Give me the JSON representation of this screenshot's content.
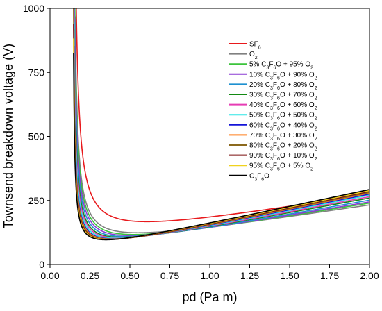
{
  "chart_data": {
    "type": "line",
    "title": "",
    "xlabel": "pd (Pa m)",
    "ylabel": "Townsend breakdown voltage (V)",
    "xlim": [
      0,
      2
    ],
    "ylim": [
      0,
      1000
    ],
    "x_ticks": [
      "0.00",
      "0.25",
      "0.50",
      "0.75",
      "1.00",
      "1.25",
      "1.50",
      "1.75",
      "2.00"
    ],
    "y_ticks": [
      "0",
      "250",
      "500",
      "750",
      "1000"
    ],
    "legend_position": "top-right",
    "grid": false,
    "series": [
      {
        "name": "SF6",
        "legend": [
          [
            "SF",
            ""
          ],
          [
            "6",
            "sub"
          ]
        ],
        "color": "#e8191c",
        "Vmin": 172,
        "pdmin": 0.78,
        "slope": 48,
        "steep": 55
      },
      {
        "name": "O2",
        "legend": [
          [
            "O",
            ""
          ],
          [
            "2",
            "sub"
          ]
        ],
        "color": "#808080",
        "Vmin": 125,
        "pdmin": 0.62,
        "slope": 26,
        "steep": 70
      },
      {
        "name": "5% C3F6O + 95% O2",
        "legend": [
          [
            "5% C",
            ""
          ],
          [
            "3",
            "sub"
          ],
          [
            "F",
            ""
          ],
          [
            "6",
            "sub"
          ],
          [
            "O + 95% O",
            ""
          ],
          [
            "2",
            "sub"
          ]
        ],
        "color": "#3cc43c",
        "Vmin": 118,
        "pdmin": 0.58,
        "slope": 26,
        "steep": 78
      },
      {
        "name": "10% C3F6O + 90% O2",
        "legend": [
          [
            "10% C",
            ""
          ],
          [
            "3",
            "sub"
          ],
          [
            "F",
            ""
          ],
          [
            "6",
            "sub"
          ],
          [
            "O + 90% O",
            ""
          ],
          [
            "2",
            "sub"
          ]
        ],
        "color": "#8c3cd4",
        "Vmin": 114,
        "pdmin": 0.55,
        "slope": 26,
        "steep": 82
      },
      {
        "name": "20% C3F6O + 80% O2",
        "legend": [
          [
            "20% C",
            ""
          ],
          [
            "3",
            "sub"
          ],
          [
            "F",
            ""
          ],
          [
            "6",
            "sub"
          ],
          [
            "O + 80% O",
            ""
          ],
          [
            "2",
            "sub"
          ]
        ],
        "color": "#1e90d0",
        "Vmin": 110,
        "pdmin": 0.52,
        "slope": 27,
        "steep": 86
      },
      {
        "name": "30% C3F6O + 70% O2",
        "legend": [
          [
            "30% C",
            ""
          ],
          [
            "3",
            "sub"
          ],
          [
            "F",
            ""
          ],
          [
            "6",
            "sub"
          ],
          [
            "O + 70% O",
            ""
          ],
          [
            "2",
            "sub"
          ]
        ],
        "color": "#138a13",
        "Vmin": 107,
        "pdmin": 0.49,
        "slope": 28,
        "steep": 90
      },
      {
        "name": "40% C3F6O + 60% O2",
        "legend": [
          [
            "40% C",
            ""
          ],
          [
            "3",
            "sub"
          ],
          [
            "F",
            ""
          ],
          [
            "6",
            "sub"
          ],
          [
            "O + 60% O",
            ""
          ],
          [
            "2",
            "sub"
          ]
        ],
        "color": "#e63cb4",
        "Vmin": 105,
        "pdmin": 0.47,
        "slope": 28,
        "steep": 93
      },
      {
        "name": "50% C3F6O + 50% O2",
        "legend": [
          [
            "50% C",
            ""
          ],
          [
            "3",
            "sub"
          ],
          [
            "F",
            ""
          ],
          [
            "6",
            "sub"
          ],
          [
            "O + 50% O",
            ""
          ],
          [
            "2",
            "sub"
          ]
        ],
        "color": "#2ee6e6",
        "Vmin": 103,
        "pdmin": 0.45,
        "slope": 29,
        "steep": 95
      },
      {
        "name": "60% C3F6O + 40% O2",
        "legend": [
          [
            "60% C",
            ""
          ],
          [
            "3",
            "sub"
          ],
          [
            "F",
            ""
          ],
          [
            "6",
            "sub"
          ],
          [
            "O + 40% O",
            ""
          ],
          [
            "2",
            "sub"
          ]
        ],
        "color": "#1414d8",
        "Vmin": 101,
        "pdmin": 0.43,
        "slope": 29,
        "steep": 97
      },
      {
        "name": "70% C3F6O + 30% O2",
        "legend": [
          [
            "70% C",
            ""
          ],
          [
            "3",
            "sub"
          ],
          [
            "F",
            ""
          ],
          [
            "6",
            "sub"
          ],
          [
            "O + 30% O",
            ""
          ],
          [
            "2",
            "sub"
          ]
        ],
        "color": "#ff7f1e",
        "Vmin": 100,
        "pdmin": 0.42,
        "slope": 30,
        "steep": 98
      },
      {
        "name": "80% C3F6O + 20% O2",
        "legend": [
          [
            "80% C",
            ""
          ],
          [
            "3",
            "sub"
          ],
          [
            "F",
            ""
          ],
          [
            "6",
            "sub"
          ],
          [
            "O + 20% O",
            ""
          ],
          [
            "2",
            "sub"
          ]
        ],
        "color": "#8c6a1e",
        "Vmin": 99,
        "pdmin": 0.41,
        "slope": 30,
        "steep": 99
      },
      {
        "name": "90% C3F6O + 10% O2",
        "legend": [
          [
            "90% C",
            ""
          ],
          [
            "3",
            "sub"
          ],
          [
            "F",
            ""
          ],
          [
            "6",
            "sub"
          ],
          [
            "O + 10% O",
            ""
          ],
          [
            "2",
            "sub"
          ]
        ],
        "color": "#7a0f0f",
        "Vmin": 98,
        "pdmin": 0.4,
        "slope": 31,
        "steep": 100
      },
      {
        "name": "95% C3F6O + 5% O2",
        "legend": [
          [
            "95% C",
            ""
          ],
          [
            "3",
            "sub"
          ],
          [
            "F",
            ""
          ],
          [
            "6",
            "sub"
          ],
          [
            "O + 5% O",
            ""
          ],
          [
            "2",
            "sub"
          ]
        ],
        "color": "#f0d21e",
        "Vmin": 98,
        "pdmin": 0.39,
        "slope": 31,
        "steep": 101
      },
      {
        "name": "C3F6O",
        "legend": [
          [
            "C",
            ""
          ],
          [
            "3",
            "sub"
          ],
          [
            "F",
            ""
          ],
          [
            "6",
            "sub"
          ],
          [
            "O",
            ""
          ]
        ],
        "color": "#000000",
        "Vmin": 97,
        "pdmin": 0.38,
        "slope": 32,
        "steep": 102
      }
    ]
  }
}
